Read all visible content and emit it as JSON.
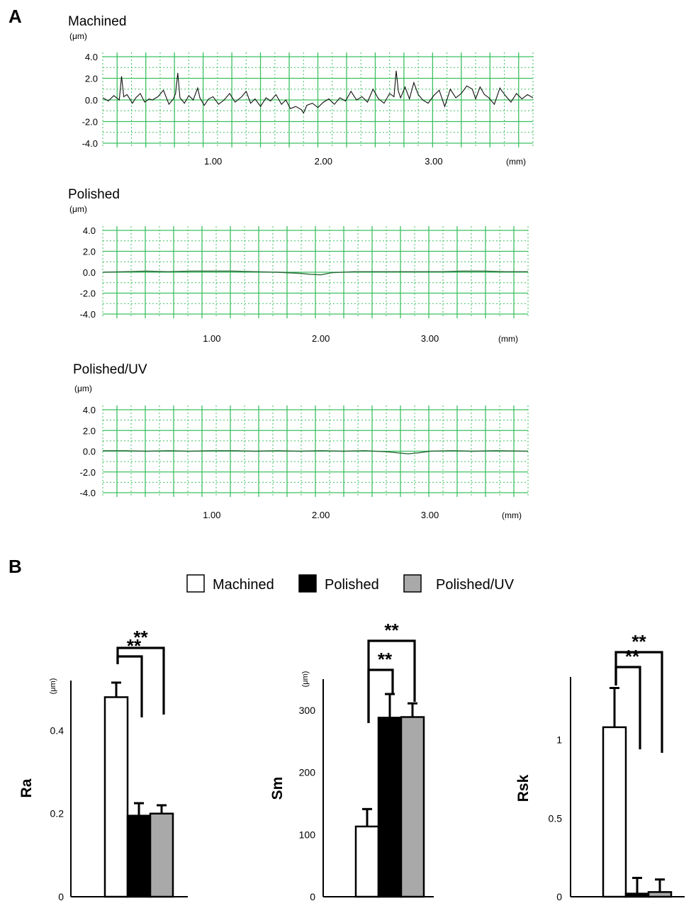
{
  "panel_labels": {
    "a": "A",
    "b": "B"
  },
  "colors": {
    "grid": "#3cc060",
    "trace_machined": "#111111",
    "trace_flat": "#2a6a3a",
    "polished_bar": "#000000",
    "polished_uv_bar": "#a9a9a9",
    "machined_bar": "#ffffff"
  },
  "legend": {
    "items": [
      {
        "label": "Machined",
        "swatch": "machined"
      },
      {
        "label": "Polished",
        "swatch": "polished"
      },
      {
        "label": "Polished/UV",
        "swatch": "polished_uv"
      }
    ]
  },
  "chart_data": [
    {
      "type": "line",
      "title": "Machined",
      "unit_label": "(μm)",
      "x_unit_label": "(mm)",
      "xlim": [
        0,
        3.9
      ],
      "ylim": [
        -4.0,
        4.0
      ],
      "y_ticks": [
        "4.0",
        "2.0",
        "0.0",
        "-2.0",
        "-4.0"
      ],
      "y_tick_values": [
        4,
        2,
        0,
        -2,
        -4
      ],
      "x_ticks": [
        "1.00",
        "2.00",
        "3.00"
      ],
      "x_tick_values": [
        1,
        2,
        3
      ],
      "grid": true,
      "series": [
        {
          "x": [
            0,
            0.05,
            0.1,
            0.15,
            0.17,
            0.19,
            0.22,
            0.27,
            0.3,
            0.34,
            0.38,
            0.42,
            0.45,
            0.5,
            0.55,
            0.6,
            0.64,
            0.66,
            0.68,
            0.7,
            0.74,
            0.78,
            0.82,
            0.86,
            0.88,
            0.92,
            0.96,
            1.0,
            1.05,
            1.1,
            1.15,
            1.2,
            1.26,
            1.3,
            1.34,
            1.38,
            1.43,
            1.48,
            1.52,
            1.57,
            1.62,
            1.66,
            1.7,
            1.75,
            1.8,
            1.82,
            1.85,
            1.9,
            1.95,
            2.0,
            2.05,
            2.1,
            2.15,
            2.2,
            2.25,
            2.3,
            2.35,
            2.4,
            2.45,
            2.5,
            2.55,
            2.6,
            2.64,
            2.66,
            2.68,
            2.7,
            2.74,
            2.78,
            2.82,
            2.86,
            2.9,
            2.95,
            3.0,
            3.05,
            3.1,
            3.15,
            3.2,
            3.25,
            3.3,
            3.35,
            3.38,
            3.42,
            3.46,
            3.5,
            3.55,
            3.6,
            3.65,
            3.7,
            3.75,
            3.8,
            3.85,
            3.9
          ],
          "y": [
            0.2,
            -0.1,
            0.4,
            0.0,
            2.2,
            0.3,
            0.5,
            -0.3,
            0.2,
            0.6,
            -0.2,
            0.1,
            0.0,
            0.3,
            0.9,
            -0.4,
            0.1,
            0.6,
            2.5,
            0.2,
            -0.3,
            0.4,
            0.0,
            1.1,
            0.2,
            -0.5,
            0.1,
            0.3,
            -0.4,
            0.0,
            0.6,
            -0.2,
            0.3,
            0.8,
            -0.3,
            0.1,
            -0.6,
            0.2,
            -0.1,
            0.5,
            -0.4,
            0.0,
            -0.8,
            -0.6,
            -0.9,
            -1.2,
            -0.5,
            -0.3,
            -0.7,
            -0.2,
            0.1,
            -0.4,
            0.2,
            -0.1,
            0.8,
            0.0,
            0.3,
            -0.2,
            1.0,
            0.1,
            -0.3,
            0.6,
            0.3,
            2.7,
            0.8,
            0.2,
            1.2,
            0.1,
            1.6,
            0.5,
            0.0,
            -0.3,
            0.4,
            0.9,
            -0.6,
            1.0,
            0.2,
            0.6,
            1.3,
            1.0,
            0.1,
            1.2,
            0.5,
            0.2,
            -0.4,
            1.1,
            0.4,
            -0.2,
            0.6,
            0.1,
            0.5,
            0.2
          ]
        }
      ]
    },
    {
      "type": "line",
      "title": "Polished",
      "unit_label": "(μm)",
      "x_unit_label": "(mm)",
      "xlim": [
        0,
        3.9
      ],
      "ylim": [
        -4.0,
        4.0
      ],
      "y_ticks": [
        "4.0",
        "2.0",
        "0.0",
        "-2.0",
        "-4.0"
      ],
      "y_tick_values": [
        4,
        2,
        0,
        -2,
        -4
      ],
      "x_ticks": [
        "1.00",
        "2.00",
        "3.00"
      ],
      "x_tick_values": [
        1,
        2,
        3
      ],
      "grid": true,
      "series": [
        {
          "x": [
            0,
            0.2,
            0.4,
            0.6,
            0.8,
            1.0,
            1.2,
            1.4,
            1.6,
            1.8,
            1.9,
            2.0,
            2.1,
            2.3,
            2.5,
            2.7,
            2.9,
            3.1,
            3.3,
            3.5,
            3.7,
            3.9
          ],
          "y": [
            0.0,
            0.05,
            0.1,
            0.05,
            0.1,
            0.1,
            0.1,
            0.05,
            0.0,
            -0.1,
            -0.2,
            -0.25,
            -0.05,
            0.05,
            0.05,
            0.05,
            0.05,
            0.05,
            0.1,
            0.1,
            0.05,
            0.05
          ]
        }
      ]
    },
    {
      "type": "line",
      "title": "Polished/UV",
      "unit_label": "(μm)",
      "x_unit_label": "(mm)",
      "xlim": [
        0,
        3.9
      ],
      "ylim": [
        -4.0,
        4.0
      ],
      "y_ticks": [
        "4.0",
        "2.0",
        "0.0",
        "-2.0",
        "-4.0"
      ],
      "y_tick_values": [
        4,
        2,
        0,
        -2,
        -4
      ],
      "x_ticks": [
        "1.00",
        "2.00",
        "3.00"
      ],
      "x_tick_values": [
        1,
        2,
        3
      ],
      "grid": true,
      "series": [
        {
          "x": [
            0,
            0.2,
            0.4,
            0.6,
            0.8,
            1.0,
            1.2,
            1.4,
            1.6,
            1.8,
            2.0,
            2.2,
            2.4,
            2.6,
            2.7,
            2.8,
            2.9,
            3.0,
            3.2,
            3.4,
            3.6,
            3.9
          ],
          "y": [
            0.05,
            0.05,
            0.0,
            0.05,
            0.0,
            0.05,
            0.05,
            0.0,
            0.05,
            0.0,
            0.05,
            0.0,
            0.05,
            -0.05,
            -0.15,
            -0.25,
            -0.15,
            0.0,
            0.05,
            0.0,
            0.05,
            0.0
          ]
        }
      ]
    },
    {
      "type": "bar",
      "ylabel": "Ra",
      "unit_label": "(μm)",
      "ylim": [
        0,
        0.52
      ],
      "y_ticks": [
        "0",
        "0.2",
        "0.4"
      ],
      "y_tick_values": [
        0,
        0.2,
        0.4
      ],
      "categories": [
        "Machined",
        "Polished",
        "Polished/UV"
      ],
      "values": [
        0.48,
        0.195,
        0.2
      ],
      "errors": [
        0.035,
        0.03,
        0.02
      ],
      "significance": [
        "**",
        "**"
      ]
    },
    {
      "type": "bar",
      "ylabel": "Sm",
      "unit_label": "(μm)",
      "ylim": [
        0,
        350
      ],
      "y_ticks": [
        "0",
        "100",
        "200",
        "300"
      ],
      "y_tick_values": [
        0,
        100,
        200,
        300
      ],
      "categories": [
        "Machined",
        "Polished",
        "Polished/UV"
      ],
      "values": [
        113,
        288,
        289
      ],
      "errors": [
        28,
        38,
        22
      ],
      "significance": [
        "**",
        "**"
      ]
    },
    {
      "type": "bar",
      "ylabel": "Rsk",
      "ylim": [
        0,
        1.4
      ],
      "y_ticks": [
        "0",
        "0.5",
        "1"
      ],
      "y_tick_values": [
        0,
        0.5,
        1
      ],
      "categories": [
        "Machined",
        "Polished",
        "Polished/UV"
      ],
      "values": [
        1.08,
        0.02,
        0.03
      ],
      "errors": [
        0.25,
        0.1,
        0.08
      ],
      "significance": [
        "**",
        "**"
      ]
    }
  ]
}
